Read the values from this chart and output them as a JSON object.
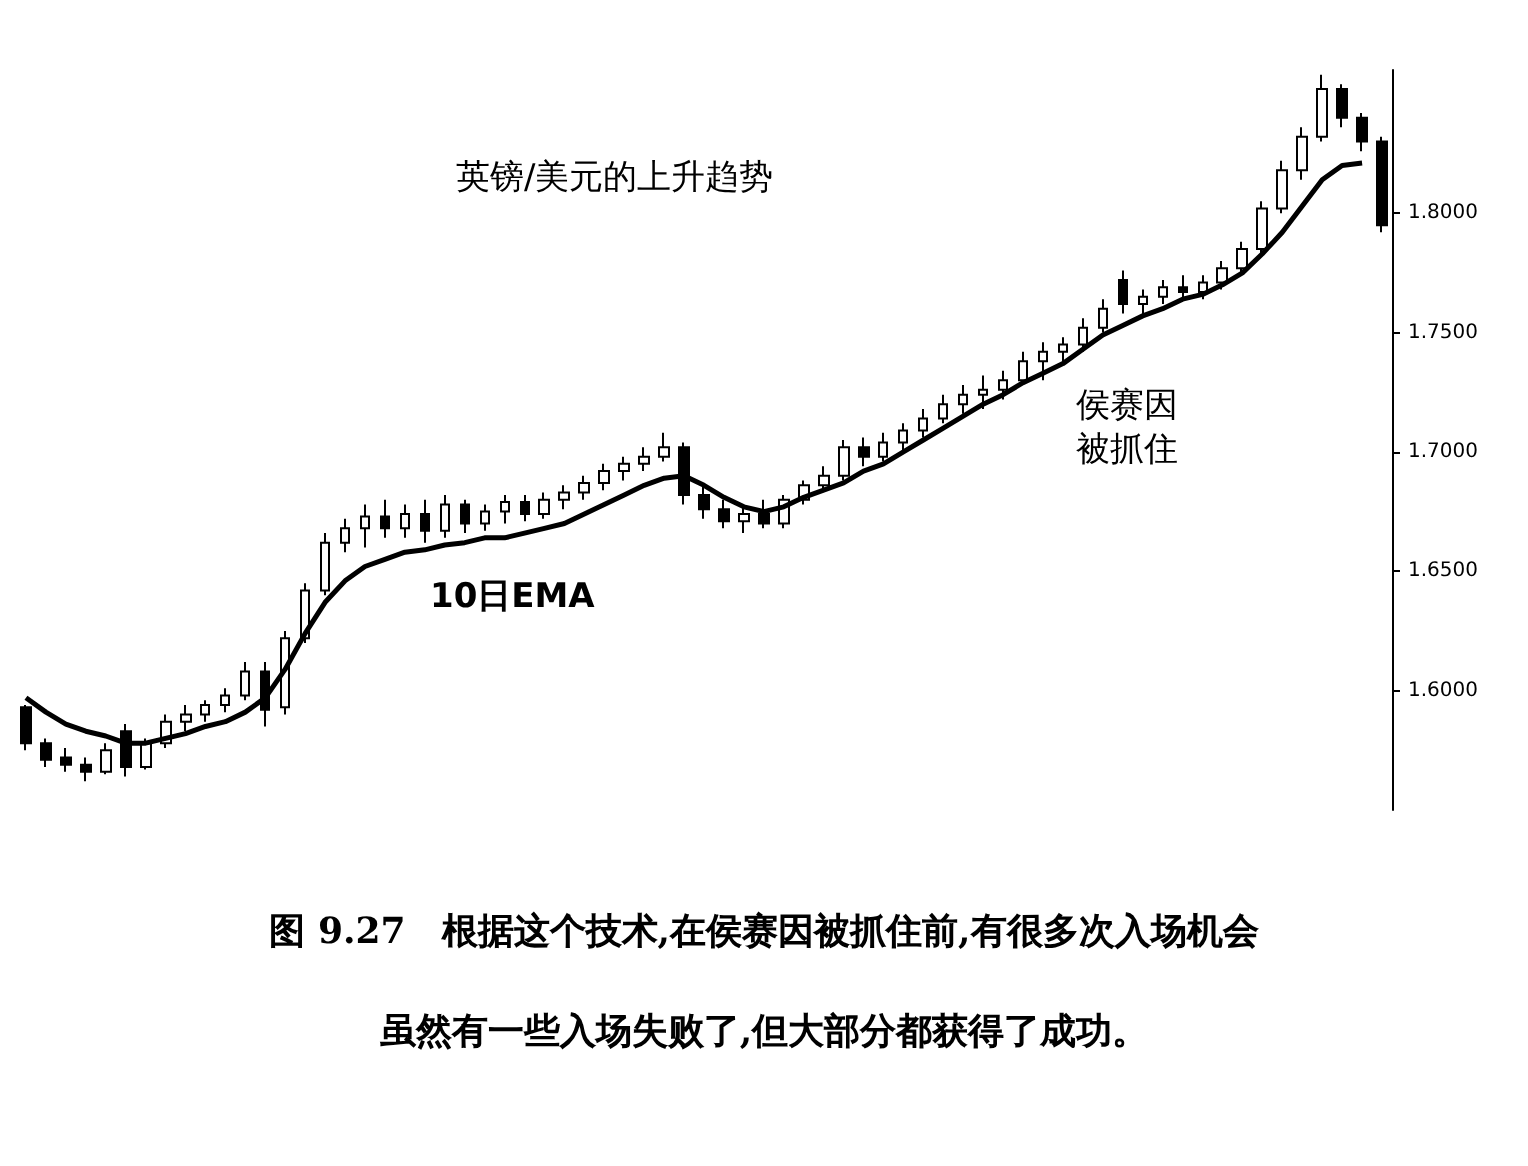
{
  "chart_data": {
    "type": "candlestick",
    "title": "图 9.27　根据这个技术,在侯赛因被抓住前,有很多次入场机会",
    "subtitle": "虽然有一些入场失败了,但大部分都获得了成功。",
    "annotations": [
      "英镑/美元的上升趋势",
      "侯赛因被抓住"
    ],
    "categories": [
      null,
      null,
      null,
      null,
      null,
      null,
      null,
      null,
      null,
      null,
      null,
      null,
      null,
      null,
      null,
      null,
      null,
      null,
      null,
      null,
      null,
      null,
      null,
      null,
      null,
      null,
      null,
      null,
      null,
      null,
      null,
      null,
      null,
      null,
      null,
      null,
      null,
      null,
      null,
      null,
      null,
      null,
      null,
      null,
      null,
      null,
      null,
      null,
      null,
      null,
      null,
      null,
      null,
      null,
      null,
      null,
      null,
      null,
      null,
      null,
      null,
      null,
      null,
      null,
      null,
      null,
      null,
      null,
      null
    ],
    "ohlc": [
      [
        1.593,
        1.594,
        1.575,
        1.578
      ],
      [
        1.578,
        1.58,
        1.568,
        1.571
      ],
      [
        1.572,
        1.576,
        1.566,
        1.569
      ],
      [
        1.569,
        1.572,
        1.562,
        1.566
      ],
      [
        1.566,
        1.578,
        1.565,
        1.575
      ],
      [
        1.583,
        1.586,
        1.564,
        1.568
      ],
      [
        1.568,
        1.58,
        1.567,
        1.578
      ],
      [
        1.578,
        1.59,
        1.576,
        1.587
      ],
      [
        1.587,
        1.594,
        1.583,
        1.59
      ],
      [
        1.59,
        1.596,
        1.587,
        1.594
      ],
      [
        1.594,
        1.601,
        1.591,
        1.598
      ],
      [
        1.598,
        1.612,
        1.596,
        1.608
      ],
      [
        1.608,
        1.612,
        1.585,
        1.592
      ],
      [
        1.593,
        1.625,
        1.59,
        1.622
      ],
      [
        1.622,
        1.645,
        1.62,
        1.642
      ],
      [
        1.642,
        1.666,
        1.64,
        1.662
      ],
      [
        1.662,
        1.672,
        1.658,
        1.668
      ],
      [
        1.668,
        1.678,
        1.66,
        1.673
      ],
      [
        1.673,
        1.68,
        1.664,
        1.668
      ],
      [
        1.668,
        1.678,
        1.664,
        1.674
      ],
      [
        1.674,
        1.68,
        1.662,
        1.667
      ],
      [
        1.667,
        1.682,
        1.664,
        1.678
      ],
      [
        1.678,
        1.68,
        1.666,
        1.67
      ],
      [
        1.67,
        1.678,
        1.667,
        1.675
      ],
      [
        1.675,
        1.682,
        1.67,
        1.679
      ],
      [
        1.679,
        1.682,
        1.671,
        1.674
      ],
      [
        1.674,
        1.683,
        1.672,
        1.68
      ],
      [
        1.68,
        1.686,
        1.676,
        1.683
      ],
      [
        1.683,
        1.69,
        1.68,
        1.687
      ],
      [
        1.687,
        1.695,
        1.684,
        1.692
      ],
      [
        1.692,
        1.698,
        1.688,
        1.695
      ],
      [
        1.695,
        1.702,
        1.692,
        1.698
      ],
      [
        1.698,
        1.708,
        1.696,
        1.702
      ],
      [
        1.702,
        1.704,
        1.678,
        1.682
      ],
      [
        1.682,
        1.686,
        1.672,
        1.676
      ],
      [
        1.676,
        1.68,
        1.668,
        1.671
      ],
      [
        1.671,
        1.678,
        1.666,
        1.674
      ],
      [
        1.674,
        1.68,
        1.668,
        1.67
      ],
      [
        1.67,
        1.682,
        1.668,
        1.68
      ],
      [
        1.68,
        1.688,
        1.678,
        1.686
      ],
      [
        1.686,
        1.694,
        1.684,
        1.69
      ],
      [
        1.69,
        1.705,
        1.688,
        1.702
      ],
      [
        1.702,
        1.706,
        1.694,
        1.698
      ],
      [
        1.698,
        1.708,
        1.696,
        1.704
      ],
      [
        1.704,
        1.712,
        1.7,
        1.709
      ],
      [
        1.709,
        1.718,
        1.706,
        1.714
      ],
      [
        1.714,
        1.724,
        1.712,
        1.72
      ],
      [
        1.72,
        1.728,
        1.716,
        1.724
      ],
      [
        1.724,
        1.732,
        1.718,
        1.726
      ],
      [
        1.726,
        1.734,
        1.722,
        1.73
      ],
      [
        1.73,
        1.742,
        1.728,
        1.738
      ],
      [
        1.738,
        1.746,
        1.73,
        1.742
      ],
      [
        1.742,
        1.748,
        1.738,
        1.745
      ],
      [
        1.745,
        1.756,
        1.742,
        1.752
      ],
      [
        1.752,
        1.764,
        1.75,
        1.76
      ],
      [
        1.772,
        1.776,
        1.758,
        1.762
      ],
      [
        1.762,
        1.768,
        1.757,
        1.765
      ],
      [
        1.765,
        1.772,
        1.762,
        1.769
      ],
      [
        1.769,
        1.774,
        1.764,
        1.767
      ],
      [
        1.767,
        1.774,
        1.764,
        1.771
      ],
      [
        1.771,
        1.78,
        1.768,
        1.777
      ],
      [
        1.777,
        1.788,
        1.774,
        1.785
      ],
      [
        1.785,
        1.805,
        1.782,
        1.802
      ],
      [
        1.802,
        1.822,
        1.8,
        1.818
      ],
      [
        1.818,
        1.836,
        1.814,
        1.832
      ],
      [
        1.832,
        1.858,
        1.83,
        1.852
      ],
      [
        1.852,
        1.854,
        1.836,
        1.84
      ],
      [
        1.84,
        1.842,
        1.826,
        1.83
      ],
      [
        1.83,
        1.832,
        1.792,
        1.795
      ]
    ],
    "series": [
      {
        "type": "line",
        "name": "10日EMA",
        "color": "#000000",
        "values": [
          1.597,
          1.591,
          1.586,
          1.583,
          1.581,
          1.578,
          1.578,
          1.58,
          1.582,
          1.585,
          1.587,
          1.591,
          1.597,
          1.609,
          1.624,
          1.637,
          1.646,
          1.652,
          1.655,
          1.658,
          1.659,
          1.661,
          1.662,
          1.664,
          1.664,
          1.666,
          1.668,
          1.67,
          1.674,
          1.678,
          1.682,
          1.686,
          1.689,
          1.69,
          1.686,
          1.681,
          1.677,
          1.675,
          1.677,
          1.681,
          1.684,
          1.687,
          1.692,
          1.695,
          1.7,
          1.705,
          1.71,
          1.715,
          1.72,
          1.724,
          1.729,
          1.733,
          1.737,
          1.743,
          1.749,
          1.753,
          1.757,
          1.76,
          1.764,
          1.766,
          1.77,
          1.775,
          1.783,
          1.792,
          1.803,
          1.814,
          1.82,
          1.821,
          null
        ]
      }
    ],
    "ylim": [
      1.55,
      1.86
    ],
    "yticks": [
      {
        "value": 1.6,
        "label": "1.6000"
      },
      {
        "value": 1.65,
        "label": "1.6500"
      },
      {
        "value": 1.7,
        "label": "1.7000"
      },
      {
        "value": 1.75,
        "label": "1.7500"
      },
      {
        "value": 1.8,
        "label": "1.8000"
      }
    ],
    "grid": false,
    "legend": false
  }
}
